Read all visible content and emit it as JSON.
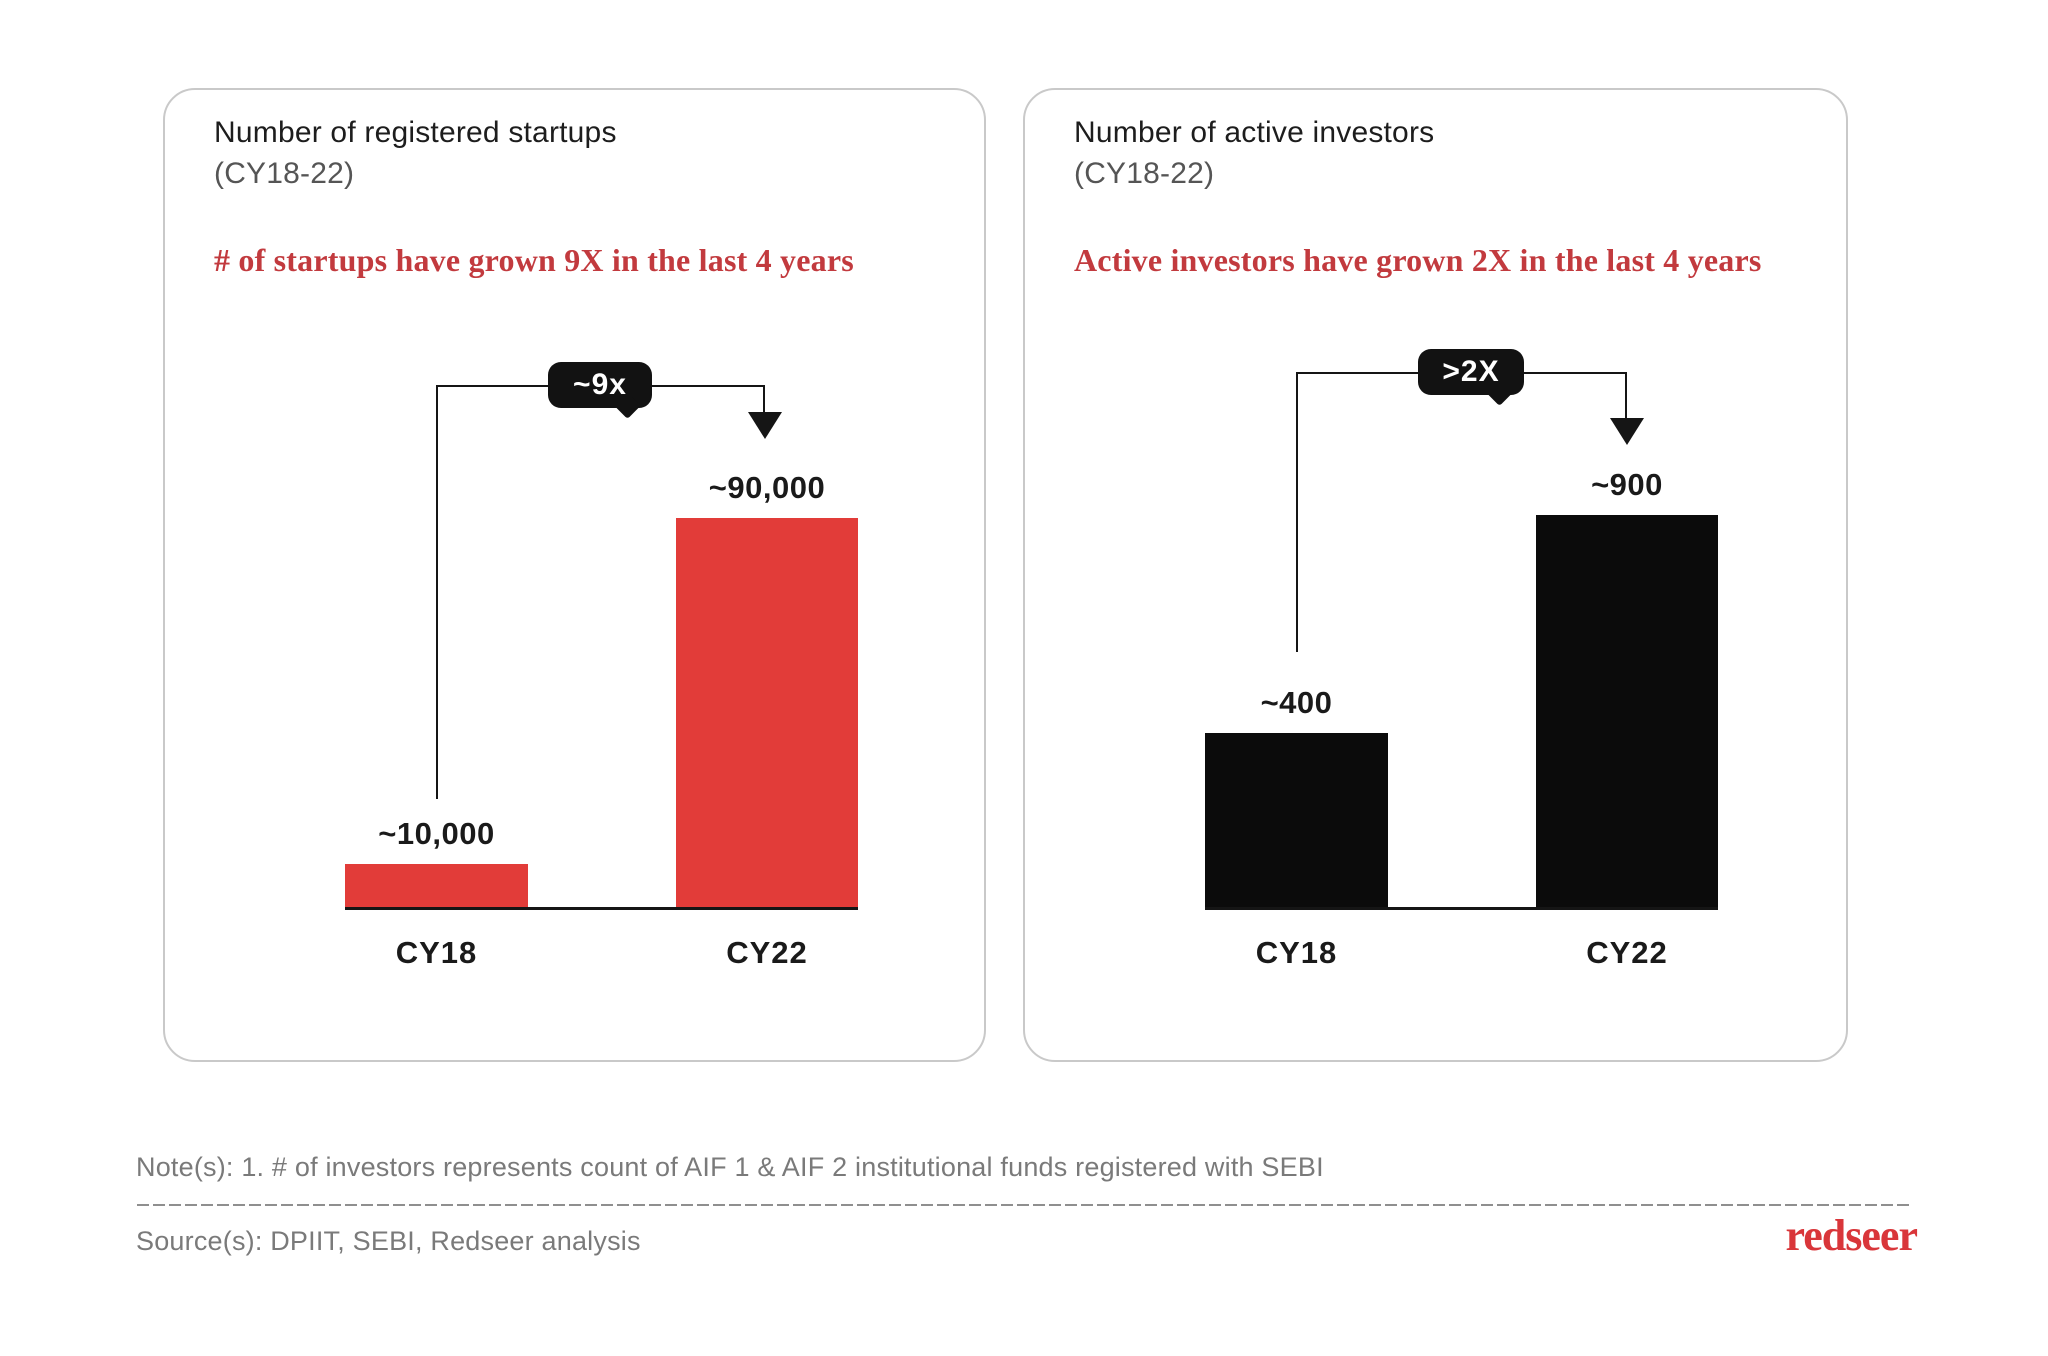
{
  "panels": [
    {
      "title_line1": "Number of registered startups",
      "title_line2": "(CY18-22)",
      "headline": "# of startups have grown 9X in the last 4 years",
      "badge": "~9x",
      "categories": [
        "CY18",
        "CY22"
      ],
      "value_labels": [
        "~10,000",
        "~90,000"
      ]
    },
    {
      "title_line1": "Number of active investors",
      "title_line2": "(CY18-22)",
      "headline": "Active investors have grown 2X in the last 4 years",
      "badge": ">2X",
      "categories": [
        "CY18",
        "CY22"
      ],
      "value_labels": [
        "~400",
        "~900"
      ]
    }
  ],
  "footer": {
    "note": "Note(s): 1. # of investors represents count of AIF 1 & AIF 2 institutional funds registered with SEBI",
    "source": "Source(s): DPIIT, SEBI, Redseer analysis",
    "logo": "redseer"
  },
  "colors": {
    "bar_red": "#E23C39",
    "bar_black": "#0B0B0B",
    "headline_red": "#C23A3E",
    "logo_red": "#D9363A",
    "note_gray": "#7A7A7A",
    "axis_black": "#151515"
  },
  "chart_data": [
    {
      "type": "bar",
      "title": "Number of registered startups (CY18-22)",
      "categories": [
        "CY18",
        "CY22"
      ],
      "values": [
        10000,
        90000
      ],
      "value_labels": [
        "~10,000",
        "~90,000"
      ],
      "annotation": "~9x growth CY18 to CY22",
      "bar_color": "#E23C39",
      "ylabel": "",
      "xlabel": "",
      "grid": false,
      "legend": false
    },
    {
      "type": "bar",
      "title": "Number of active investors (CY18-22)",
      "categories": [
        "CY18",
        "CY22"
      ],
      "values": [
        400,
        900
      ],
      "value_labels": [
        "~400",
        "~900"
      ],
      "annotation": ">2X growth CY18 to CY22",
      "bar_color": "#0B0B0B",
      "ylabel": "",
      "xlabel": "",
      "grid": false,
      "legend": false
    }
  ]
}
